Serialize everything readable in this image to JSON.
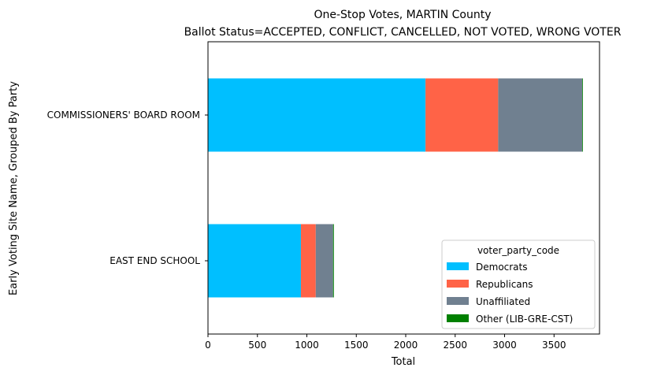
{
  "chart_data": {
    "type": "bar",
    "orientation": "horizontal",
    "stacked": true,
    "title": [
      "One-Stop Votes, MARTIN County",
      "Ballot Status=ACCEPTED, CONFLICT, CANCELLED, NOT VOTED, WRONG VOTER"
    ],
    "xlabel": "Total",
    "ylabel": "Early Voting Site Name, Grouped By Party",
    "xlim": [
      0,
      3960
    ],
    "xticks": [
      0,
      500,
      1000,
      1500,
      2000,
      2500,
      3000,
      3500
    ],
    "categories": [
      "COMMISSIONERS' BOARD ROOM",
      "EAST END SCHOOL"
    ],
    "series": [
      {
        "name": "Democrats",
        "color": "#00bfff",
        "values": [
          2200,
          940
        ]
      },
      {
        "name": "Republicans",
        "color": "#ff6347",
        "values": [
          735,
          150
        ]
      },
      {
        "name": "Unaffiliated",
        "color": "#708090",
        "values": [
          850,
          175
        ]
      },
      {
        "name": "Other (LIB-GRE-CST)",
        "color": "#008000",
        "values": [
          5,
          8
        ]
      }
    ],
    "legend": {
      "title": "voter_party_code",
      "placement": "lower-right"
    },
    "grid": false
  }
}
